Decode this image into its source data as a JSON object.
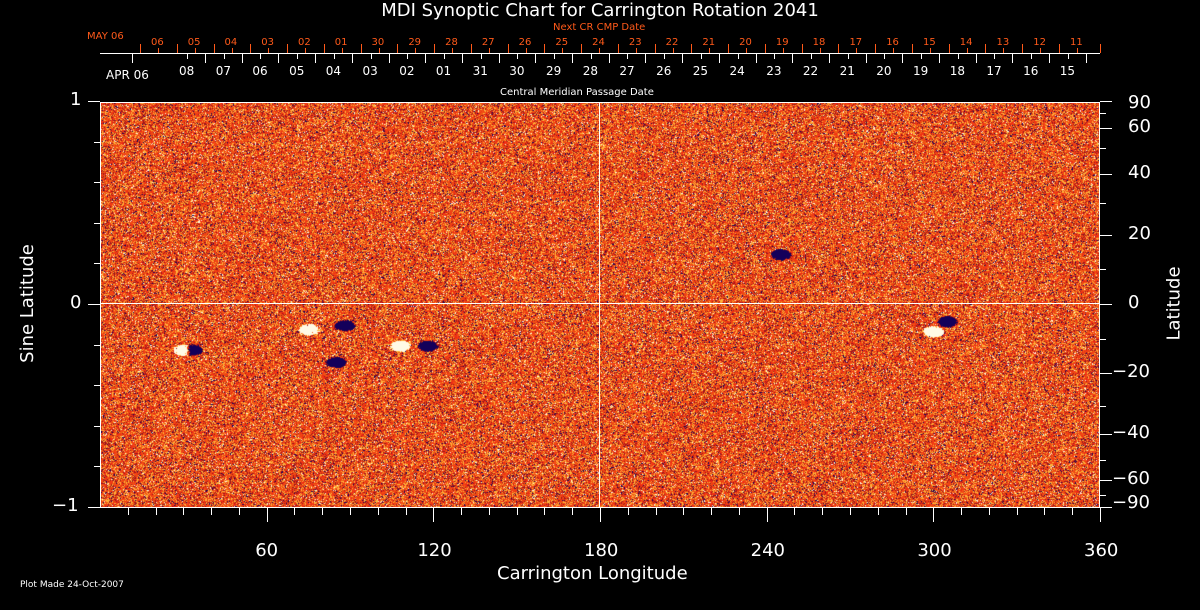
{
  "chart_data": {
    "type": "heatmap",
    "title": "MDI Synoptic Chart for Carrington Rotation 2041",
    "xlabel": "Carrington Longitude",
    "ylabel": "Sine Latitude",
    "ylabel_right": "Latitude",
    "xlim": [
      0,
      360
    ],
    "ylim": [
      -1,
      1
    ],
    "x_ticks": [
      "60",
      "120",
      "180",
      "240",
      "300",
      "360"
    ],
    "y_ticks": [
      "1",
      "0",
      "−1"
    ],
    "y_right_ticks": [
      "90",
      "60",
      "40",
      "20",
      "0",
      "−20",
      "−40",
      "−60",
      "−90"
    ],
    "y_right_values": [
      90,
      60,
      40,
      20,
      0,
      -20,
      -40,
      -60,
      -90
    ],
    "top_axis_label": "Central Meridian Passage Date",
    "top_axis_start": "APR 06",
    "top_axis_dates": [
      "08",
      "07",
      "06",
      "05",
      "04",
      "03",
      "02",
      "01",
      "31",
      "30",
      "29",
      "28",
      "27",
      "26",
      "25",
      "24",
      "23",
      "22",
      "21",
      "20",
      "19",
      "18",
      "17",
      "16",
      "15"
    ],
    "next_cr_label": "Next CR CMP Date",
    "next_cr_start": "MAY 06",
    "next_cr_dates": [
      "06",
      "05",
      "04",
      "03",
      "02",
      "01",
      "30",
      "29",
      "28",
      "27",
      "26",
      "25",
      "24",
      "23",
      "22",
      "21",
      "20",
      "19",
      "18",
      "17",
      "16",
      "15",
      "14",
      "13",
      "12",
      "11"
    ],
    "gridlines": "x=180, y=0",
    "colormap": "black-blue (negative) / orange-red / yellow-white (positive)"
  },
  "footer": {
    "plot_made": "Plot Made 24-Oct-2007"
  },
  "colors": {
    "accent_red": "#ff5a1a",
    "field_orange": "#f04a10"
  }
}
